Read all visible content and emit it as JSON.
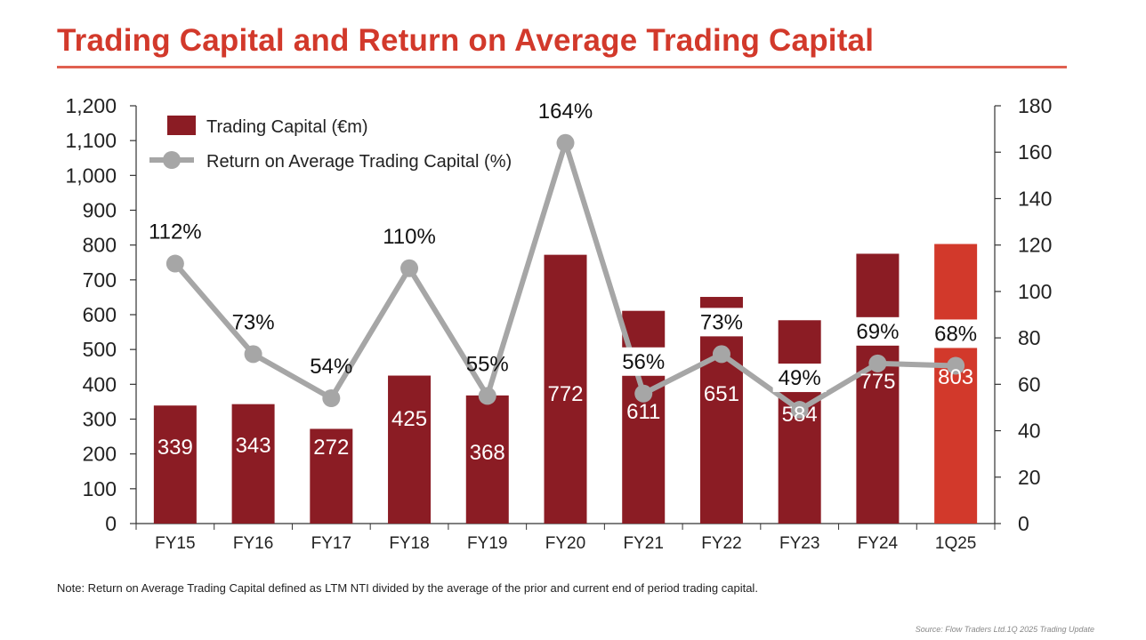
{
  "title": "Trading Capital and Return on Average Trading Capital",
  "note": "Note: Return on Average Trading Capital defined as LTM NTI divided by the average of the prior and current end of period trading capital.",
  "source": "Source: Flow Traders Ltd.1Q 2025 Trading Update",
  "colors": {
    "title": "#d2392b",
    "bar": "#8b1c24",
    "bar_highlight": "#d2392b",
    "line": "#a6a6a6"
  },
  "chart_data": {
    "type": "bar",
    "categories": [
      "FY15",
      "FY16",
      "FY17",
      "FY18",
      "FY19",
      "FY20",
      "FY21",
      "FY22",
      "FY23",
      "FY24",
      "1Q25"
    ],
    "series": [
      {
        "name": "Trading Capital (€m)",
        "type": "bar",
        "axis": "left",
        "values": [
          339,
          343,
          272,
          425,
          368,
          772,
          611,
          651,
          584,
          775,
          803
        ],
        "labels": [
          "339",
          "343",
          "272",
          "425",
          "368",
          "772",
          "611",
          "651",
          "584",
          "775",
          "803"
        ]
      },
      {
        "name": "Return on Average Trading Capital (%)",
        "type": "line",
        "axis": "right",
        "values": [
          112,
          73,
          54,
          110,
          55,
          164,
          56,
          73,
          49,
          69,
          68
        ],
        "labels": [
          "112%",
          "73%",
          "54%",
          "110%",
          "55%",
          "164%",
          "56%",
          "73%",
          "49%",
          "69%",
          "68%"
        ]
      }
    ],
    "highlight_category": "1Q25",
    "y_left": {
      "lim": [
        0,
        1200
      ],
      "ticks": [
        0,
        100,
        200,
        300,
        400,
        500,
        600,
        700,
        800,
        900,
        1000,
        1100,
        1200
      ],
      "tick_labels": [
        "0",
        "100",
        "200",
        "300",
        "400",
        "500",
        "600",
        "700",
        "800",
        "900",
        "1,000",
        "1,100",
        "1,200"
      ]
    },
    "y_right": {
      "lim": [
        0,
        180
      ],
      "ticks": [
        0,
        20,
        40,
        60,
        80,
        100,
        120,
        140,
        160,
        180
      ],
      "tick_labels": [
        "0",
        "20",
        "40",
        "60",
        "80",
        "100",
        "120",
        "140",
        "160",
        "180"
      ]
    },
    "legend": {
      "placement": "top-left",
      "entries": [
        "Trading Capital (€m)",
        "Return on Average Trading Capital (%)"
      ]
    },
    "grid": false
  }
}
